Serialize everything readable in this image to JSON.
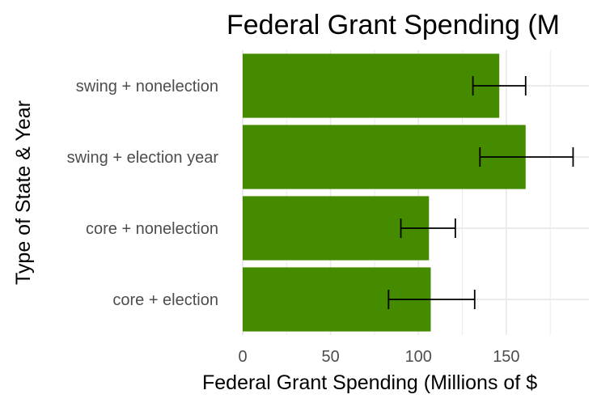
{
  "chart_data": {
    "type": "bar",
    "orientation": "horizontal",
    "title": "Federal Grant Spending (M",
    "xlabel": "Federal Grant Spending (Millions of $",
    "ylabel": "Type of State & Year",
    "categories": [
      "swing + nonelection",
      "swing + election year",
      "core + nonelection",
      "core + election"
    ],
    "values": [
      146,
      161,
      106,
      107
    ],
    "error_low": [
      131,
      135,
      90,
      83
    ],
    "error_high": [
      161,
      188,
      121,
      132
    ],
    "xlim": [
      0,
      197
    ],
    "x_ticks": [
      0,
      50,
      100,
      150
    ],
    "x_tick_labels": [
      "0",
      "50",
      "100",
      "150"
    ],
    "grid": true,
    "bar_color": "#458B00",
    "error_bar_color": "#000000"
  }
}
